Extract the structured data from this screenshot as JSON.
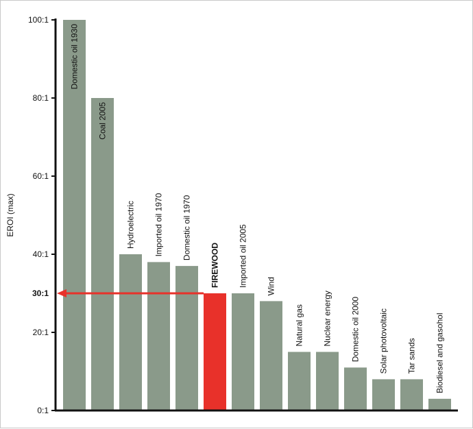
{
  "chart_data": {
    "type": "bar",
    "title": "",
    "xlabel": "",
    "ylabel": "EROI (max)",
    "ylim": [
      0,
      100
    ],
    "yticks": [
      {
        "value": 0,
        "label": "0:1"
      },
      {
        "value": 20,
        "label": "20:1"
      },
      {
        "value": 40,
        "label": "40:1"
      },
      {
        "value": 60,
        "label": "60:1"
      },
      {
        "value": 80,
        "label": "80:1"
      },
      {
        "value": 100,
        "label": "100:1"
      }
    ],
    "categories": [
      "Domestic oil 1930",
      "Coal 2005",
      "Hydroelectric",
      "Imported oil 1970",
      "Domestic oil 1970",
      "FIREWOOD",
      "Imported oil 2005",
      "Wind",
      "Natural gas",
      "Nuclear energy",
      "Domestic oil 2000",
      "Solar photovoltaic",
      "Tar sands",
      "Biodiesel and gasohol"
    ],
    "values": [
      100,
      80,
      40,
      38,
      37,
      30,
      30,
      28,
      15,
      15,
      11,
      8,
      8,
      3
    ],
    "highlight_index": 5,
    "bold_categories": [
      "FIREWOOD"
    ],
    "annotation": {
      "label": "30:1",
      "value": 30,
      "target_category": "FIREWOOD"
    },
    "colors": {
      "bar": "#8a9a8a",
      "highlight": "#e8312a",
      "axis": "#111111",
      "annotation": "#e8312a"
    },
    "grid": false,
    "legend": "none"
  }
}
